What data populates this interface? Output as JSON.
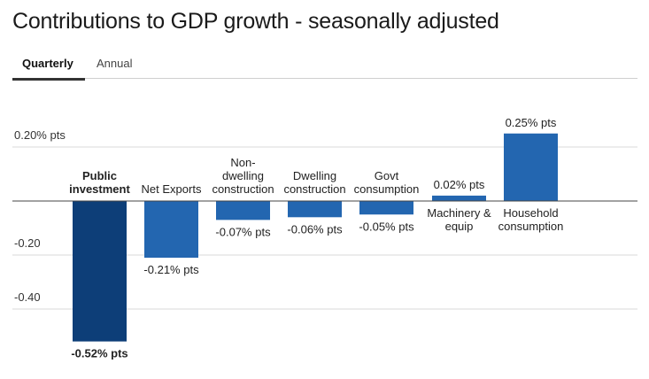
{
  "title": "Contributions to GDP growth - seasonally adjusted",
  "tabs": [
    {
      "label": "Quarterly",
      "active": true
    },
    {
      "label": "Annual",
      "active": false
    }
  ],
  "chart_data": {
    "type": "bar",
    "categories": [
      [
        "Public",
        "investment"
      ],
      [
        "Net Exports"
      ],
      [
        "Non-",
        "dwelling",
        "construction"
      ],
      [
        "Dwelling",
        "construction"
      ],
      [
        "Govt",
        "consumption"
      ],
      [
        "Machinery &",
        "equip"
      ],
      [
        "Household",
        "consumption"
      ]
    ],
    "values": [
      -0.52,
      -0.21,
      -0.07,
      -0.06,
      -0.05,
      0.02,
      0.25
    ],
    "data_labels": [
      "-0.52% pts",
      "-0.21% pts",
      "-0.07% pts",
      "-0.06% pts",
      "-0.05% pts",
      "0.02% pts",
      "0.25% pts"
    ],
    "highlight_index": 0,
    "colors": {
      "bar": "#2366b0",
      "highlight": "#0d3e78",
      "grid": "#d9d9d9",
      "zero_line": "#444444"
    },
    "ylim": [
      -0.55,
      0.3
    ],
    "yticks": [
      {
        "value": 0.2,
        "label": "0.20% pts"
      },
      {
        "value": -0.2,
        "label": "-0.20"
      },
      {
        "value": -0.4,
        "label": "-0.40"
      }
    ],
    "grid": true
  }
}
